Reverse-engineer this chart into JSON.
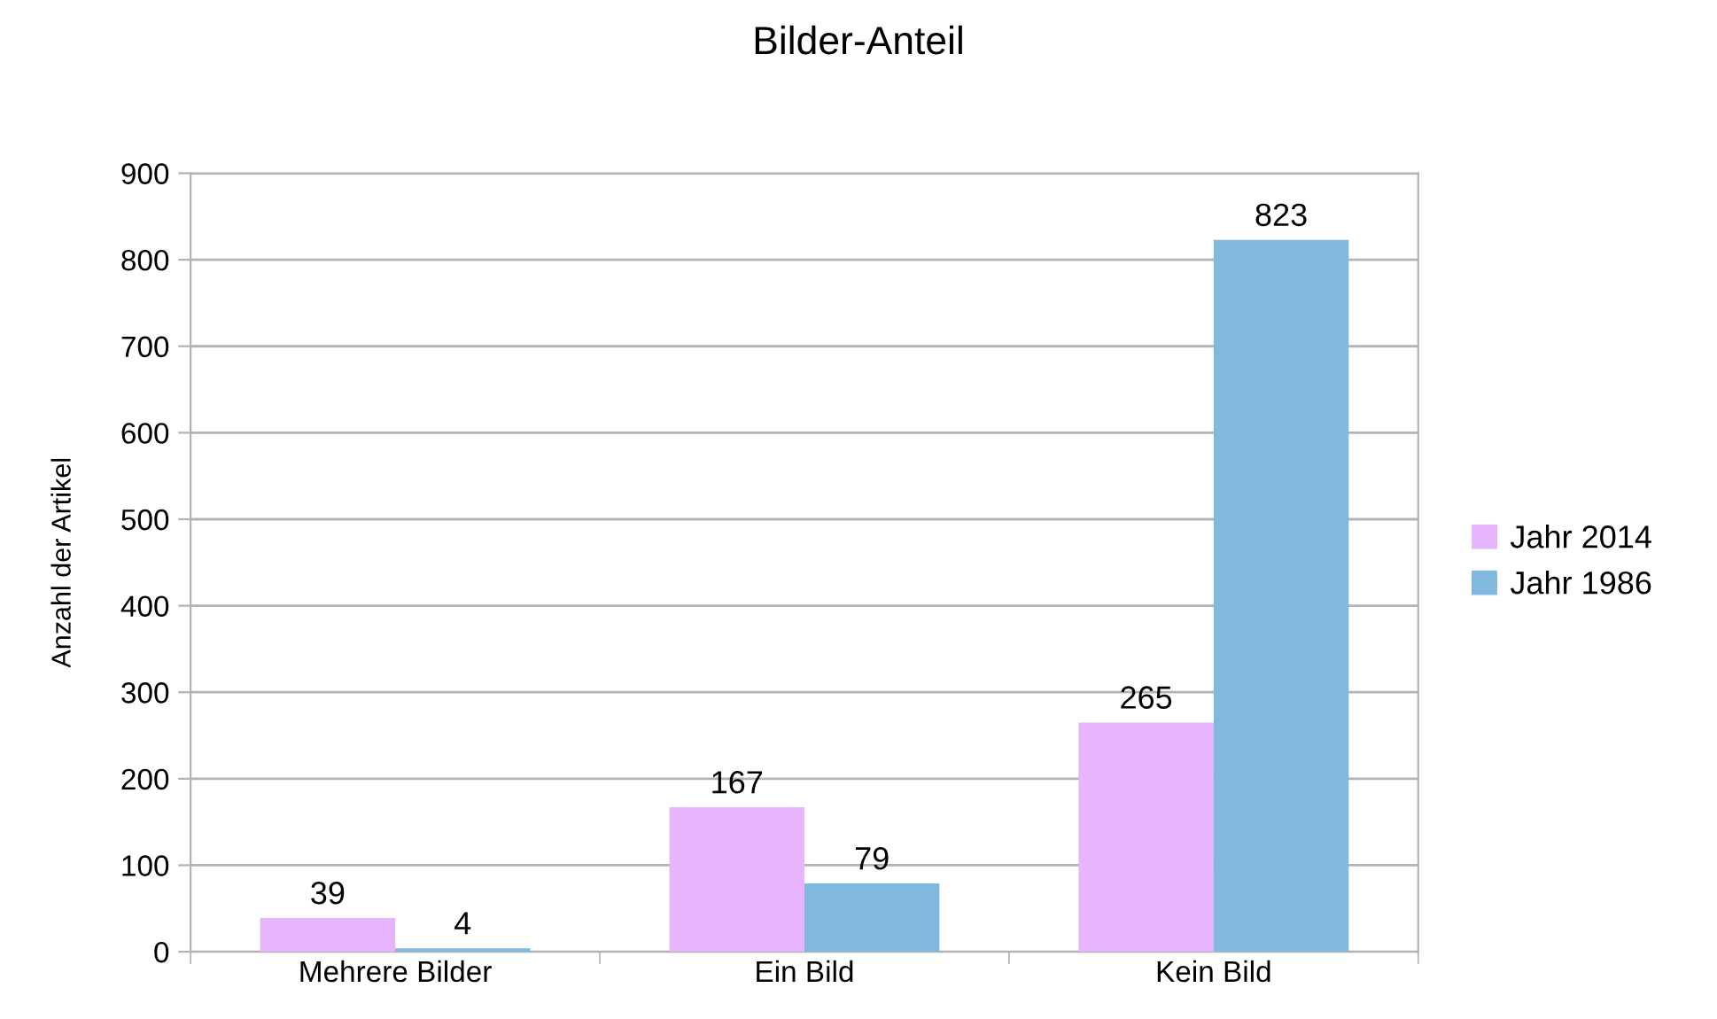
{
  "chart_data": {
    "type": "bar",
    "title": "Bilder-Anteil",
    "ylabel": "Anzahl der Artikel",
    "categories": [
      "Mehrere Bilder",
      "Ein Bild",
      "Kein Bild"
    ],
    "series": [
      {
        "name": "Jahr 2014",
        "color": "#e6b5fb",
        "values": [
          39,
          167,
          265
        ]
      },
      {
        "name": "Jahr 1986",
        "color": "#80b8de",
        "values": [
          4,
          79,
          823
        ]
      }
    ],
    "ylim": [
      0,
      900
    ],
    "yticks": [
      0,
      100,
      200,
      300,
      400,
      500,
      600,
      700,
      800,
      900
    ],
    "grid": "y",
    "legend": "right",
    "data_labels": true
  }
}
